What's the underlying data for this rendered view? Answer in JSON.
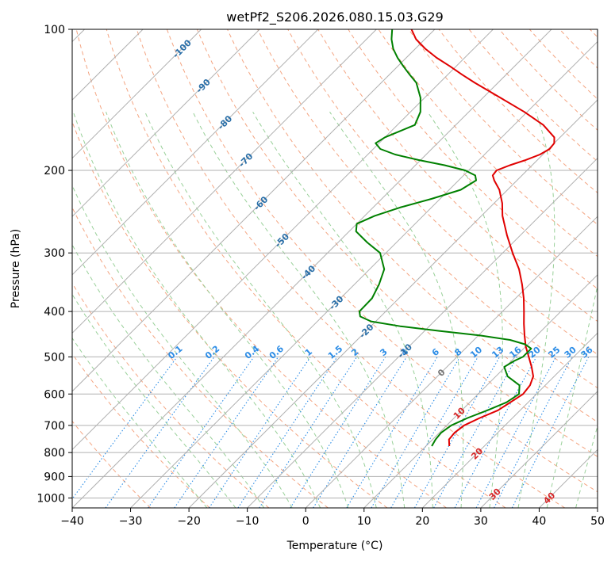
{
  "chart_data": {
    "type": "line",
    "title": "wetPf2_S206.2026.080.15.03.G29",
    "xlabel": "Temperature (°C)",
    "ylabel": "Pressure (hPa)",
    "xlim": [
      -40,
      50
    ],
    "ylim": [
      1050,
      100
    ],
    "y_scale": "log",
    "grid": true,
    "x_ticks": [
      -40,
      -30,
      -20,
      -10,
      0,
      10,
      20,
      30,
      40,
      50
    ],
    "y_ticks": [
      100,
      200,
      300,
      400,
      500,
      600,
      700,
      800,
      900,
      1000
    ],
    "skew": true,
    "series": [
      {
        "name": "",
        "color": "#e00000",
        "y": [
          775,
          750,
          725,
          700,
          675,
          650,
          600,
          575,
          550,
          525,
          500,
          475,
          450,
          425,
          400,
          375,
          350,
          325,
          300,
          275,
          250,
          235,
          220,
          210,
          205,
          200,
          195,
          190,
          185,
          180,
          175,
          170,
          160,
          150,
          140,
          130,
          125,
          120,
          115,
          110,
          105,
          100
        ],
        "x": [
          14.0,
          12.8,
          12.6,
          13.0,
          14.4,
          16.2,
          17.7,
          17.4,
          16.4,
          14.5,
          12.3,
          10.0,
          7.9,
          5.8,
          3.7,
          1.4,
          -1.3,
          -4.4,
          -8.3,
          -12.3,
          -16.4,
          -18.6,
          -21.4,
          -23.9,
          -25.0,
          -25.2,
          -23.8,
          -22.0,
          -20.5,
          -19.8,
          -20.0,
          -21.0,
          -25.0,
          -30.5,
          -37.0,
          -44.0,
          -47.5,
          -51.0,
          -54.8,
          -58.3,
          -61.5,
          -64.0
        ]
      },
      {
        "name": "",
        "color": "#008000",
        "y": [
          775,
          750,
          725,
          700,
          675,
          650,
          625,
          600,
          575,
          550,
          525,
          510,
          500,
          480,
          470,
          460,
          450,
          440,
          430,
          420,
          410,
          400,
          375,
          350,
          325,
          300,
          285,
          270,
          260,
          250,
          240,
          230,
          220,
          210,
          205,
          200,
          195,
          190,
          185,
          180,
          175,
          170,
          165,
          160,
          150,
          140,
          130,
          125,
          120,
          115,
          110,
          105,
          100
        ],
        "x": [
          11.0,
          10.5,
          10.3,
          10.8,
          12.3,
          14.4,
          16.3,
          17.0,
          15.6,
          12.0,
          9.8,
          10.5,
          11.3,
          11.3,
          9.5,
          6.2,
          0.3,
          -7.5,
          -15.0,
          -20.8,
          -23.5,
          -24.5,
          -24.6,
          -25.8,
          -27.5,
          -31.0,
          -35.0,
          -38.8,
          -40.0,
          -38.3,
          -35.4,
          -31.5,
          -28.0,
          -27.0,
          -28.0,
          -30.6,
          -35.0,
          -40.4,
          -45.3,
          -48.8,
          -50.6,
          -50.0,
          -48.5,
          -47.0,
          -48.3,
          -50.7,
          -54.0,
          -56.5,
          -59.0,
          -61.5,
          -63.8,
          -65.7,
          -67.3
        ]
      }
    ],
    "dry_adiabat_labels": [
      "-100",
      "-90",
      "-80",
      "-70",
      "-60",
      "-50",
      "-40",
      "-30",
      "-20",
      "-10",
      "0",
      "10",
      "20",
      "30",
      "40"
    ],
    "mixing_ratio_labels": [
      "0.1",
      "0.2",
      "0.4",
      "0.6",
      "1",
      "1.5",
      "2",
      "3",
      "4",
      "6",
      "8",
      "10",
      "13",
      "16",
      "20",
      "25",
      "30",
      "36"
    ],
    "colors": {
      "temperature": "#e00000",
      "dewpoint": "#008000",
      "isotherm": "#b0b0b0",
      "isobar": "#b0b0b0",
      "dry_adiabat": "#f4a582",
      "moist_adiabat": "#99d099",
      "mixing_ratio": "#2b8ce6",
      "cold_label": "#2a6fa8",
      "zero_label": "#777777",
      "warm_label": "#d62728"
    }
  }
}
